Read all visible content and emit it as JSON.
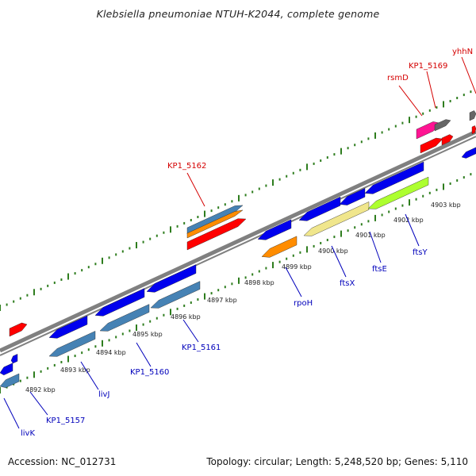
{
  "title": "Klebsiella pneumoniae NTUH-K2044, complete genome",
  "footer": {
    "accession": "Accession: NC_012731",
    "summary": "Topology: circular; Length: 5,248,520 bp; Genes: 5,110"
  },
  "colors": {
    "backbone": "#808080",
    "tick": "#2e7d1e",
    "label_forward": "#d40000",
    "label_reverse": "#0000bb",
    "blue": "#0000ee",
    "steel": "#4682b4",
    "red": "#ff0000",
    "orange": "#ff8c00",
    "magenta": "#ff1493",
    "gray": "#666666",
    "khaki": "#f0e68c",
    "lime": "#adff2f"
  },
  "kbp_labels": [
    "4892 kbp",
    "4893 kbp",
    "4894 kbp",
    "4895 kbp",
    "4896 kbp",
    "4897 kbp",
    "4898 kbp",
    "4899 kbp",
    "4900 kbp",
    "4901 kbp",
    "4902 kbp",
    "4903 kbp"
  ],
  "gene_labels": [
    {
      "text": "KP1_5162",
      "strand": "forward"
    },
    {
      "text": "rsmD",
      "strand": "forward"
    },
    {
      "text": "KP1_5169",
      "strand": "forward"
    },
    {
      "text": "yhhN",
      "strand": "forward"
    },
    {
      "text": "livK",
      "strand": "reverse"
    },
    {
      "text": "KP1_5157",
      "strand": "reverse"
    },
    {
      "text": "livJ",
      "strand": "reverse"
    },
    {
      "text": "KP1_5160",
      "strand": "reverse"
    },
    {
      "text": "KP1_5161",
      "strand": "reverse"
    },
    {
      "text": "rpoH",
      "strand": "reverse"
    },
    {
      "text": "ftsX",
      "strand": "reverse"
    },
    {
      "text": "ftsE",
      "strand": "reverse"
    },
    {
      "text": "ftsY",
      "strand": "reverse"
    }
  ]
}
